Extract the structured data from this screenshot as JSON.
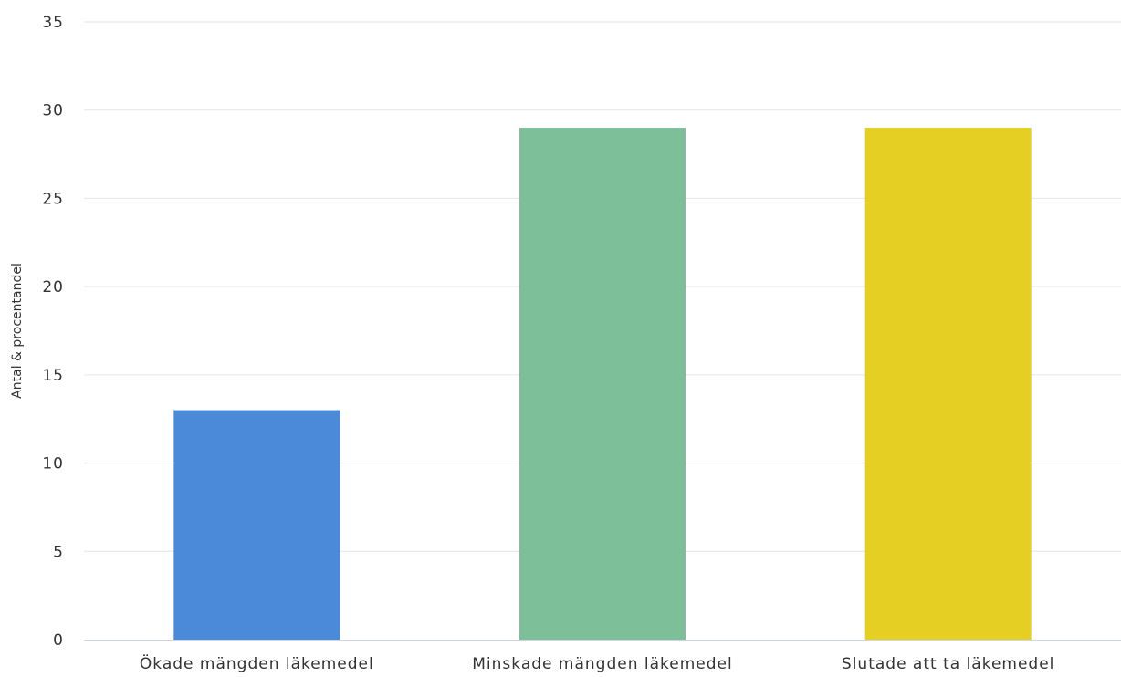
{
  "chart_data": {
    "type": "bar",
    "title": "",
    "xlabel": "",
    "ylabel": "Antal & procentandel",
    "ylim": [
      0,
      35
    ],
    "yticks": [
      0,
      5,
      10,
      15,
      20,
      25,
      30,
      35
    ],
    "grid": true,
    "legend": "none",
    "categories": [
      "Ökade mängden läkemedel",
      "Minskade mängden läkemedel",
      "Slutade att ta läkemedel"
    ],
    "values": [
      13,
      29,
      29
    ],
    "colors": [
      "#4a8ad9",
      "#7cbf99",
      "#e4cf22"
    ]
  }
}
